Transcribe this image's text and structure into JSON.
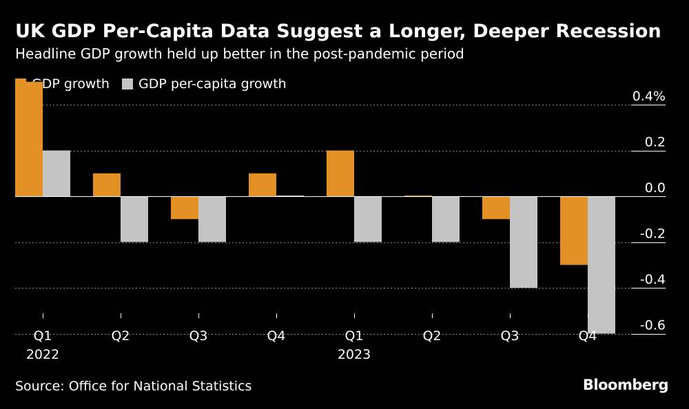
{
  "header": {
    "title": "UK GDP Per-Capita Data Suggest a Longer, Deeper Recession",
    "subtitle": "Headline GDP growth held up better in the post-pandemic period"
  },
  "footer": {
    "source": "Source: Office for National Statistics",
    "brand": "Bloomberg"
  },
  "colors": {
    "background": "#000000",
    "gdp_growth": "#e39125",
    "gdp_per_capita": "#c4c4c4",
    "grid": "#8a8a8a"
  },
  "chart_data": {
    "type": "bar",
    "title": "UK GDP Per-Capita Data Suggest a Longer, Deeper Recession",
    "subtitle": "Headline GDP growth held up better in the post-pandemic period",
    "categories": [
      "Q1",
      "Q2",
      "Q3",
      "Q4",
      "Q1",
      "Q2",
      "Q3",
      "Q4"
    ],
    "year_labels": [
      "2022",
      "",
      "",
      "",
      "2023",
      "",
      "",
      ""
    ],
    "series": [
      {
        "name": "GDP growth",
        "color": "#e39125",
        "values": [
          0.5,
          0.1,
          -0.1,
          0.1,
          0.2,
          0.0,
          -0.1,
          -0.3
        ]
      },
      {
        "name": "GDP per-capita growth",
        "color": "#c4c4c4",
        "values": [
          0.2,
          -0.2,
          -0.2,
          0.0,
          -0.2,
          -0.2,
          -0.4,
          -0.6
        ]
      }
    ],
    "ylim": [
      -0.6,
      0.4
    ],
    "yticks": [
      0.4,
      0.2,
      0.0,
      -0.2,
      -0.4,
      -0.6
    ],
    "ytick_labels": [
      "0.4%",
      "0.2",
      "0.0",
      "-0.2",
      "-0.4",
      "-0.6"
    ],
    "xlabel": "",
    "ylabel": "",
    "grid": true,
    "legend": "top-left"
  }
}
